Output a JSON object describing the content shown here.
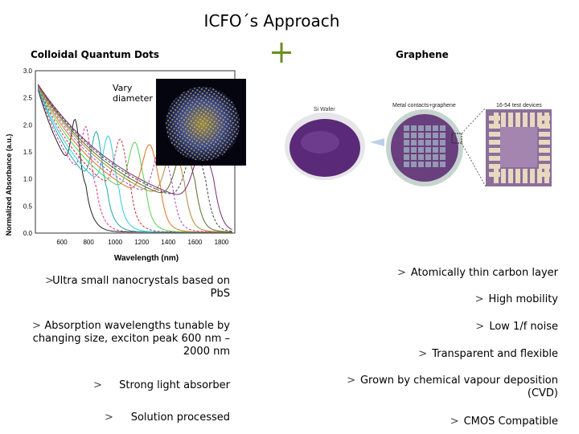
{
  "title": "ICFO´s Approach",
  "plus_color": "#6a8f1e",
  "left_heading": "Colloidal Quantum Dots",
  "right_heading": "Graphene",
  "qd_image_label": "Vary diameter",
  "chart_data": {
    "type": "line",
    "title": "",
    "xlabel": "Wavelength (nm)",
    "ylabel": "Normalized Absorbance (a.u.)",
    "xlim": [
      400,
      1900
    ],
    "ylim": [
      0,
      3
    ],
    "x_ticks": [
      "600",
      "800",
      "1000",
      "1200",
      "1400",
      "1600",
      "1800"
    ],
    "y_ticks": [
      "0.0",
      "0.5",
      "1.0",
      "1.5",
      "2.0",
      "2.5",
      "3.0"
    ],
    "grid": false,
    "series": [
      {
        "color": "#222222",
        "peak": 700,
        "values_note": ""
      },
      {
        "color": "#d4348c",
        "peak": 780
      },
      {
        "color": "#1fa6a6",
        "peak": 860
      },
      {
        "color": "#2ecbe0",
        "peak": 950
      },
      {
        "color": "#c03030",
        "peak": 1040
      },
      {
        "color": "#55cc55",
        "peak": 1150
      },
      {
        "color": "#e07020",
        "peak": 1260
      },
      {
        "color": "#9a4fd0",
        "peak": 1350
      },
      {
        "color": "#b08a30",
        "peak": 1440
      },
      {
        "color": "#556b2f",
        "peak": 1520
      },
      {
        "color": "#444444",
        "peak": 1600
      },
      {
        "color": "#7a2a7a",
        "peak": 1660
      }
    ]
  },
  "photo_labels": {
    "wafer": "Si Wafer",
    "chip": "Metal contacts+graphene",
    "devices": "16-54 test devices"
  },
  "bullet_glyph": ">",
  "left_bullets": [
    "Ultra small nanocrystals based on PbS",
    "Absorption wavelengths tunable by changing size, exciton peak 600 nm – 2000 nm",
    "Strong light absorber",
    "Solution processed"
  ],
  "right_bullets": [
    "Atomically thin carbon layer",
    "High mobility",
    "Low 1/f noise",
    "Transparent and flexible",
    "Grown by chemical vapour deposition (CVD)",
    "CMOS Compatible"
  ]
}
